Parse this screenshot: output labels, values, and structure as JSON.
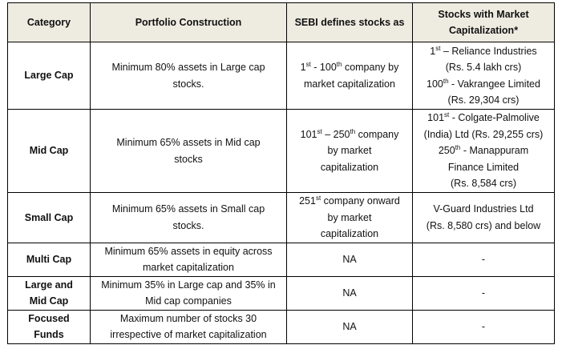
{
  "headers": [
    "Category",
    "Portfolio Construction",
    "SEBI defines stocks as",
    [
      "Stocks with Market",
      "Capitalization*"
    ]
  ],
  "rows": [
    {
      "category": [
        "Large Cap"
      ],
      "portfolio": [
        "Minimum 80% assets in Large cap",
        "stocks."
      ],
      "sebi": [
        [
          {
            "t": "1"
          },
          {
            "sup": "st"
          },
          {
            "t": " - 100"
          },
          {
            "sup": "th"
          },
          {
            "t": " company by"
          }
        ],
        [
          {
            "t": "market capitalization"
          }
        ]
      ],
      "stocks": [
        [
          {
            "t": "1"
          },
          {
            "sup": "st"
          },
          {
            "t": " – Reliance Industries"
          }
        ],
        [
          {
            "t": "(Rs. 5.4 lakh crs)"
          }
        ],
        [
          {
            "t": "100"
          },
          {
            "sup": "th"
          },
          {
            "t": " - Vakrangee Limited"
          }
        ],
        [
          {
            "t": "(Rs. 29,304 crs)"
          }
        ]
      ]
    },
    {
      "category": [
        "Mid Cap"
      ],
      "portfolio": [
        "Minimum 65% assets in Mid cap",
        "stocks"
      ],
      "sebi": [
        [
          {
            "t": "101"
          },
          {
            "sup": "st"
          },
          {
            "t": " – 250"
          },
          {
            "sup": "th"
          },
          {
            "t": " company"
          }
        ],
        [
          {
            "t": "by market"
          }
        ],
        [
          {
            "t": "capitalization"
          }
        ]
      ],
      "stocks": [
        [
          {
            "t": "101"
          },
          {
            "sup": "st"
          },
          {
            "t": " - Colgate-Palmolive"
          }
        ],
        [
          {
            "t": "(India) Ltd (Rs. 29,255 crs)"
          }
        ],
        [
          {
            "t": "250"
          },
          {
            "sup": "th"
          },
          {
            "t": " - Manappuram"
          }
        ],
        [
          {
            "t": "Finance Limited"
          }
        ],
        [
          {
            "t": "(Rs. 8,584 crs)"
          }
        ]
      ]
    },
    {
      "category": [
        "Small Cap"
      ],
      "portfolio": [
        "Minimum 65% assets in Small cap",
        "stocks."
      ],
      "sebi": [
        [
          {
            "t": "251"
          },
          {
            "sup": "st"
          },
          {
            "t": " company onward"
          }
        ],
        [
          {
            "t": "by market"
          }
        ],
        [
          {
            "t": "capitalization"
          }
        ]
      ],
      "stocks": [
        [
          {
            "t": "V-Guard Industries Ltd"
          }
        ],
        [
          {
            "t": "(Rs. 8,580 crs) and below"
          }
        ]
      ]
    },
    {
      "category": [
        "Multi Cap"
      ],
      "portfolio": [
        "Minimum 65% assets in equity across",
        "market capitalization"
      ],
      "sebi": [
        [
          {
            "t": "NA"
          }
        ]
      ],
      "stocks": [
        [
          {
            "t": "-"
          }
        ]
      ]
    },
    {
      "category": [
        "Large and",
        "Mid Cap"
      ],
      "portfolio": [
        "Minimum 35% in Large cap and 35% in",
        "Mid cap companies"
      ],
      "sebi": [
        [
          {
            "t": "NA"
          }
        ]
      ],
      "stocks": [
        [
          {
            "t": "-"
          }
        ]
      ]
    },
    {
      "category": [
        "Focused",
        "Funds"
      ],
      "portfolio": [
        "Maximum number of stocks 30",
        "irrespective of market capitalization"
      ],
      "sebi": [
        [
          {
            "t": "NA"
          }
        ]
      ],
      "stocks": [
        [
          {
            "t": "-"
          }
        ]
      ]
    }
  ]
}
